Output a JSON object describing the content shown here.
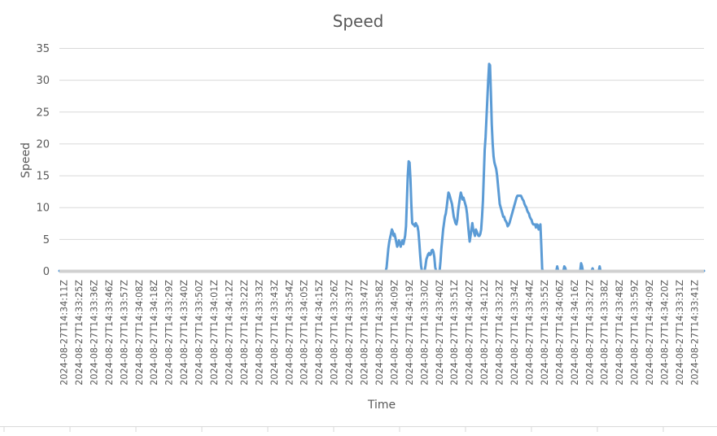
{
  "chart_data": {
    "type": "line",
    "title": "Speed",
    "xlabel": "Time",
    "ylabel": "Speed",
    "ylim": [
      0,
      35
    ],
    "yticks": [
      "0",
      "5",
      "10",
      "15",
      "20",
      "25",
      "30",
      "35"
    ],
    "grid": true,
    "legend": "none",
    "colors": {
      "series": "#5b9bd5",
      "grid": "#d9d9d9",
      "text": "#595959"
    },
    "x_tick_labels": [
      "2024-08-27T14:34:11Z",
      "2024-08-27T14:33:25Z",
      "2024-08-27T14:33:36Z",
      "2024-08-27T14:33:46Z",
      "2024-08-27T14:33:57Z",
      "2024-08-27T14:34:08Z",
      "2024-08-27T14:34:18Z",
      "2024-08-27T14:33:29Z",
      "2024-08-27T14:33:40Z",
      "2024-08-27T14:33:50Z",
      "2024-08-27T14:34:01Z",
      "2024-08-27T14:34:12Z",
      "2024-08-27T14:33:22Z",
      "2024-08-27T14:33:33Z",
      "2024-08-27T14:33:43Z",
      "2024-08-27T14:33:54Z",
      "2024-08-27T14:34:05Z",
      "2024-08-27T14:34:15Z",
      "2024-08-27T14:33:26Z",
      "2024-08-27T14:33:37Z",
      "2024-08-27T14:33:47Z",
      "2024-08-27T14:33:58Z",
      "2024-08-27T14:34:09Z",
      "2024-08-27T14:34:19Z",
      "2024-08-27T14:33:30Z",
      "2024-08-27T14:33:40Z",
      "2024-08-27T14:33:51Z",
      "2024-08-27T14:34:02Z",
      "2024-08-27T14:34:12Z",
      "2024-08-27T14:33:23Z",
      "2024-08-27T14:33:34Z",
      "2024-08-27T14:33:44Z",
      "2024-08-27T14:33:55Z",
      "2024-08-27T14:34:06Z",
      "2024-08-27T14:34:16Z",
      "2024-08-27T14:33:27Z",
      "2024-08-27T14:33:38Z",
      "2024-08-27T14:33:48Z",
      "2024-08-27T14:33:59Z",
      "2024-08-27T14:34:09Z",
      "2024-08-27T14:34:20Z",
      "2024-08-27T14:33:31Z",
      "2024-08-27T14:33:41Z"
    ],
    "series": [
      {
        "values": [
          0,
          0,
          0,
          0,
          0,
          0,
          0,
          0,
          0,
          0,
          0,
          0,
          0,
          0,
          0,
          0,
          0,
          0,
          0,
          0,
          0,
          0,
          0,
          0,
          0,
          0,
          0,
          0,
          0,
          0,
          0,
          0,
          0,
          0,
          0,
          0,
          0,
          0,
          0,
          0,
          0,
          0,
          0,
          0,
          0,
          0,
          0,
          0,
          0,
          0,
          0,
          0,
          0,
          0,
          0,
          0,
          0,
          0,
          0,
          0,
          0,
          0,
          0,
          0,
          0,
          0,
          0,
          0,
          0,
          0,
          0,
          0,
          0,
          0,
          0,
          0,
          0,
          0,
          0,
          0,
          0,
          0,
          0,
          0,
          0,
          0,
          0,
          0,
          0,
          0,
          0,
          0,
          0,
          0,
          0,
          0,
          0,
          0,
          0,
          0,
          0,
          0,
          0,
          0,
          0,
          0,
          0,
          0,
          0,
          0,
          0,
          0,
          0,
          0,
          0,
          0,
          0,
          0,
          0,
          0,
          0,
          0,
          0,
          0,
          0,
          0,
          0,
          0,
          0,
          0,
          0,
          0,
          0,
          0,
          0,
          0,
          0,
          0,
          0,
          0,
          0,
          0,
          0,
          0,
          0,
          0,
          0,
          0,
          0,
          0,
          0,
          0,
          0,
          0,
          0,
          0,
          0,
          0,
          0,
          0,
          0,
          0,
          0,
          0,
          0,
          0,
          0,
          0,
          0,
          0,
          0,
          0,
          0,
          0,
          0,
          0,
          0,
          0,
          0,
          0,
          0,
          0,
          0,
          0,
          0,
          0,
          0,
          0,
          0,
          0,
          0,
          0,
          0,
          0,
          0,
          0,
          0,
          0,
          0,
          0,
          0,
          0,
          0,
          0,
          0,
          0,
          0,
          0,
          0,
          0,
          0,
          0,
          0,
          0,
          0,
          0,
          0,
          0,
          0,
          0,
          0,
          0,
          0,
          0,
          0,
          0,
          0,
          0,
          0,
          0,
          0,
          0,
          0,
          0,
          0,
          0,
          0,
          0,
          0,
          0,
          0,
          0,
          0,
          0,
          0,
          0,
          0,
          0,
          0,
          0,
          0,
          0,
          0,
          0,
          0,
          0,
          0,
          0,
          0,
          0,
          0,
          0,
          0,
          0,
          0,
          0,
          0,
          0,
          0,
          0,
          0,
          0,
          0,
          0,
          0,
          0,
          0,
          0,
          0,
          0,
          0,
          0,
          0,
          0,
          0,
          0,
          0,
          0,
          0,
          0,
          0,
          0,
          0,
          0,
          0,
          0,
          0,
          0,
          0,
          0,
          0,
          0,
          0,
          0,
          0,
          0,
          0,
          0,
          0,
          0,
          0,
          0,
          0,
          0,
          0,
          0,
          0,
          0,
          0,
          0,
          0,
          0,
          0,
          0,
          0,
          0,
          0,
          0,
          0,
          0,
          0,
          0,
          0,
          0,
          0,
          0,
          0,
          0,
          0,
          0,
          0,
          0,
          0,
          0,
          0,
          0,
          0,
          0,
          0,
          0,
          0,
          0,
          0,
          0,
          0,
          0,
          0,
          0,
          0,
          0,
          0,
          0,
          0,
          0,
          0,
          0,
          0,
          0,
          0,
          0,
          0.5,
          2,
          3.5,
          4.5,
          5.2,
          5.8,
          6.5,
          6.2,
          5.5,
          5.8,
          5.2,
          4.5,
          3.8,
          4.2,
          4.8,
          4.2,
          3.8,
          4.5,
          4.8,
          4.2,
          4.8,
          5.5,
          7,
          11,
          15,
          17.2,
          17,
          14.5,
          10.5,
          7.5,
          7.3,
          7.3,
          7,
          7.5,
          7.2,
          7,
          6.2,
          4.5,
          2.5,
          0.8,
          0,
          0,
          0,
          0,
          0.8,
          1.8,
          2.2,
          2.6,
          2.8,
          2.5,
          2.6,
          3.2,
          3.3,
          3,
          2.2,
          0.6,
          0,
          0,
          0,
          0,
          0,
          1.5,
          3.5,
          5,
          6.5,
          7.5,
          8.5,
          9,
          10,
          11.2,
          12.3,
          12,
          11.5,
          11,
          10.5,
          9.5,
          8.5,
          8,
          7.5,
          7.3,
          8,
          9.5,
          10.5,
          11.5,
          12.3,
          11.8,
          11.2,
          11.5,
          11,
          10.5,
          10,
          9,
          7.5,
          6,
          4.6,
          5.5,
          6.5,
          7.5,
          6.5,
          6,
          5.5,
          6.5,
          6.2,
          5.8,
          5.5,
          5.5,
          5.8,
          6.5,
          8.5,
          11,
          15,
          19,
          21,
          24,
          27,
          30,
          32.5,
          32.3,
          28,
          23,
          20,
          18,
          17,
          16.5,
          16,
          15,
          13.5,
          12,
          10.5,
          10,
          9.5,
          9,
          8.5,
          8.5,
          8,
          7.8,
          7.5,
          7,
          7.2,
          7.5,
          8,
          8.5,
          9,
          9.5,
          10,
          10.5,
          11,
          11.5,
          11.8,
          11.8,
          11.8,
          11.8,
          11.8,
          11.5,
          11.2,
          11,
          10.5,
          10.2,
          10,
          9.5,
          9.2,
          9,
          8.5,
          8.2,
          8,
          7.5,
          7.3,
          7.3,
          7.3,
          6.8,
          7.3,
          7.2,
          6.5,
          6.8,
          7.3,
          4,
          0.3,
          0,
          0,
          0,
          0,
          0,
          0,
          0,
          0,
          0,
          0,
          0,
          0,
          0,
          0,
          0,
          0,
          0.7,
          0,
          0,
          0,
          0,
          0,
          0,
          0,
          0.7,
          0.5,
          0,
          0,
          0,
          0,
          0,
          0,
          0,
          0,
          0,
          0,
          0,
          0,
          0,
          0,
          0,
          0,
          0,
          1.2,
          0.8,
          0,
          0,
          0,
          0,
          0,
          0,
          0,
          0,
          0,
          0,
          0,
          0.4,
          0,
          0,
          0,
          0,
          0,
          0,
          0,
          0.7,
          0,
          0,
          0,
          0,
          0,
          0,
          0,
          0,
          0,
          0,
          0,
          0,
          0,
          0,
          0,
          0,
          0,
          0,
          0,
          0,
          0,
          0,
          0,
          0,
          0,
          0,
          0,
          0,
          0,
          0,
          0,
          0,
          0,
          0,
          0,
          0,
          0,
          0,
          0,
          0,
          0,
          0,
          0,
          0,
          0,
          0,
          0,
          0,
          0,
          0,
          0,
          0,
          0,
          0,
          0,
          0,
          0,
          0,
          0,
          0,
          0,
          0,
          0,
          0,
          0,
          0,
          0,
          0,
          0,
          0,
          0,
          0,
          0,
          0,
          0,
          0,
          0,
          0,
          0,
          0,
          0,
          0,
          0,
          0,
          0,
          0,
          0,
          0,
          0,
          0,
          0,
          0,
          0,
          0,
          0,
          0,
          0,
          0,
          0,
          0,
          0,
          0,
          0,
          0,
          0,
          0,
          0,
          0,
          0,
          0,
          0,
          0,
          0,
          0,
          0,
          0,
          0,
          0
        ]
      }
    ]
  }
}
